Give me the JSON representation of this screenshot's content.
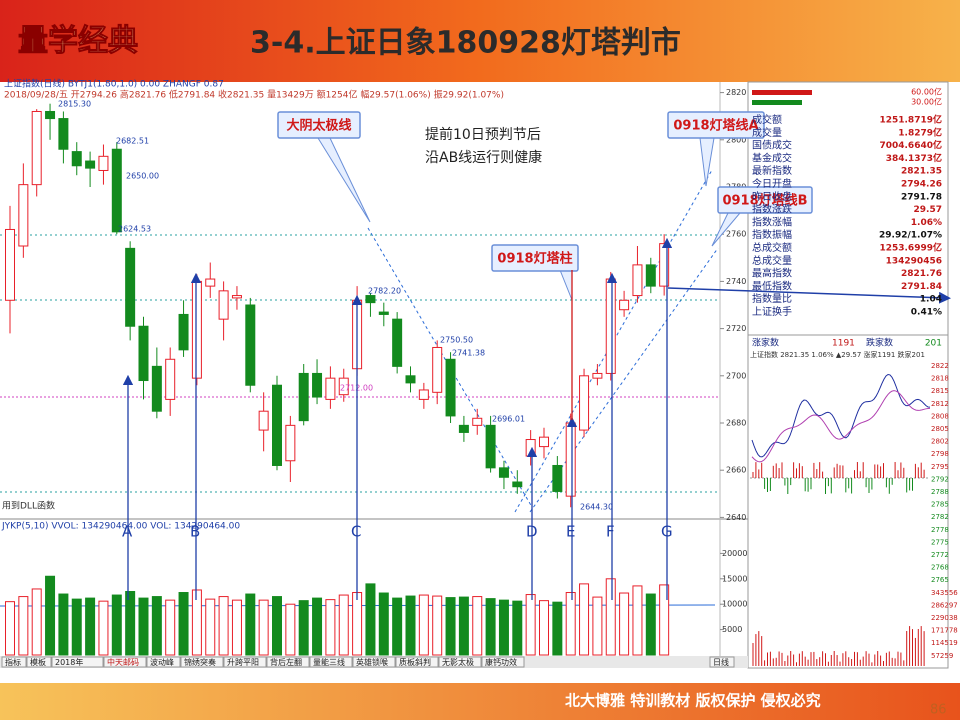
{
  "header": {
    "logo": "量学经典",
    "title": "3-4.上证日象180928灯塔判市"
  },
  "footer": {
    "text": "北大博雅 特训教材 版权保护 侵权必究",
    "page": "86"
  },
  "toolbar": {
    "line1": "上证指数(日线) BYTJ1(1.80,1.0) 0.00 ZHANGF 0.87",
    "line2": "2018/09/28/五 开2794.26 高2821.76 低2791.84 收2821.35 量13429万 额1254亿 幅29.57(1.06%) 振29.92(1.07%)",
    "dll": "用到DLL函数",
    "volume_header": "JYKP(5,10) VVOL: 134290464.00 VOL: 134290464.00"
  },
  "annotations": {
    "callouts": [
      "大阴太极线",
      "0918灯塔线A",
      "0918灯塔线B",
      "0918灯塔柱"
    ],
    "note": [
      "提前10日预判节后",
      "沿AB线运行则健康"
    ],
    "letters": [
      "A",
      "B",
      "C",
      "D",
      "E",
      "F",
      "G"
    ],
    "price_labels": [
      "2815.30",
      "2682.51",
      "2650.00",
      "2624.53",
      "2782.20",
      "2750.50",
      "2741.38",
      "2712.00",
      "2696.01",
      "2644.30"
    ]
  },
  "chart_data": {
    "type": "candlestick",
    "ylim": [
      2630,
      2830
    ],
    "yticks": [
      2640,
      2660,
      2680,
      2700,
      2720,
      2740,
      2760,
      2780,
      2800,
      2820
    ],
    "open": [
      2732,
      2755,
      2781,
      2812,
      2809,
      2795,
      2791,
      2787,
      2796,
      2754,
      2721,
      2704,
      2690,
      2726,
      2699,
      2738,
      2724,
      2733,
      2730,
      2677,
      2696,
      2664,
      2701,
      2701,
      2690,
      2692,
      2703,
      2734,
      2727,
      2724,
      2700,
      2690,
      2693,
      2707,
      2679,
      2679,
      2679,
      2661,
      2655,
      2666,
      2670,
      2662,
      2649,
      2677,
      2699,
      2701,
      2728,
      2734,
      2747,
      2738
    ],
    "high": [
      2772,
      2790,
      2813,
      2815.3,
      2812,
      2799,
      2795,
      2798,
      2799,
      2757,
      2725,
      2712,
      2712,
      2732,
      2743,
      2748,
      2740,
      2738,
      2733,
      2693,
      2700,
      2683,
      2705,
      2707,
      2704,
      2703,
      2738,
      2735,
      2731,
      2727,
      2704,
      2697,
      2715,
      2710,
      2683,
      2686,
      2683,
      2664,
      2660,
      2677,
      2678,
      2666,
      2684,
      2703,
      2705,
      2744,
      2736,
      2755,
      2750,
      2760
    ],
    "low": [
      2718,
      2750,
      2776,
      2800,
      2790,
      2785,
      2780,
      2781,
      2760,
      2715,
      2690,
      2682,
      2683,
      2708,
      2696,
      2733,
      2715,
      2728,
      2693,
      2668,
      2660,
      2655,
      2679,
      2688,
      2686,
      2689,
      2700,
      2725,
      2721,
      2701,
      2693,
      2686,
      2688,
      2680,
      2672,
      2675,
      2659,
      2652,
      2650,
      2662,
      2665,
      2648,
      2644.3,
      2674,
      2696,
      2698,
      2725,
      2731,
      2735,
      2734
    ],
    "close": [
      2762,
      2781,
      2812,
      2809,
      2796,
      2789,
      2788,
      2793,
      2761,
      2721,
      2698,
      2685,
      2707,
      2711,
      2740,
      2741,
      2736,
      2734,
      2696,
      2685,
      2662,
      2679,
      2681,
      2691,
      2699,
      2699,
      2732,
      2731,
      2726,
      2704,
      2697,
      2694,
      2712,
      2683,
      2676,
      2682,
      2661,
      2657,
      2653,
      2673,
      2674,
      2651,
      2680,
      2700,
      2701,
      2741,
      2732,
      2747,
      2738,
      2756
    ],
    "volume": [
      10500,
      11500,
      13000,
      15500,
      12000,
      11000,
      11200,
      10600,
      11800,
      12500,
      11200,
      11500,
      10800,
      12300,
      12800,
      11000,
      11500,
      10800,
      12000,
      10800,
      11500,
      10000,
      10700,
      11200,
      10900,
      11800,
      12300,
      14000,
      12200,
      11200,
      11600,
      11800,
      11600,
      11300,
      11400,
      11500,
      11100,
      10800,
      10600,
      11900,
      10700,
      10400,
      12300,
      14000,
      11400,
      15000,
      12200,
      13600,
      12000,
      13800
    ],
    "vol_ylim": [
      0,
      25000
    ],
    "vol_yticks": [
      5000,
      10000,
      15000,
      20000
    ],
    "up_color": "#e8202a",
    "down_color": "#138a1e"
  },
  "quote_panel": {
    "top": [
      "60.00亿",
      "30.00亿"
    ],
    "rows": [
      [
        "成交额",
        "1251.8719亿"
      ],
      [
        "成交量",
        "1.8279亿"
      ],
      [
        "国债成交",
        "7004.6640亿"
      ],
      [
        "基金成交",
        "384.1373亿"
      ],
      [
        "最新指数",
        "2821.35"
      ],
      [
        "今日开盘",
        "2794.26"
      ],
      [
        "昨日收盘",
        "2791.78"
      ],
      [
        "指数涨跌",
        "29.57"
      ],
      [
        "指数涨幅",
        "1.06%"
      ],
      [
        "指数振幅",
        "29.92/1.07%"
      ],
      [
        "总成交额",
        "1253.6999亿"
      ],
      [
        "总成交量",
        "134290456"
      ],
      [
        "最高指数",
        "2821.76"
      ],
      [
        "最低指数",
        "2791.84"
      ],
      [
        "指数量比",
        "1.04"
      ],
      [
        "上证换手",
        "0.41%"
      ]
    ],
    "breadth": [
      "涨家数",
      "1191",
      "跌家数",
      "201"
    ],
    "mini_header": "上证指数 2821.35 1.06% ▲29.57 涨家1191 跌家201",
    "mini_ticks": [
      "2822",
      "2818",
      "2815",
      "2812",
      "2808",
      "2805",
      "2802",
      "2798",
      "2795",
      "2792",
      "2788",
      "2785",
      "2782",
      "2778",
      "2775",
      "2772",
      "2768",
      "2765",
      "343556",
      "286297",
      "229038",
      "171778",
      "114519",
      "57259"
    ]
  },
  "tabs": [
    "指标",
    "模板",
    "2018年",
    "中天邮码",
    "波动峰",
    "锦绣突奏",
    "升跨平阳",
    "背后左翻",
    "量能三线",
    "英雄锁喉",
    "质板斜判",
    "无影太极",
    "康钙功效",
    "日线"
  ]
}
